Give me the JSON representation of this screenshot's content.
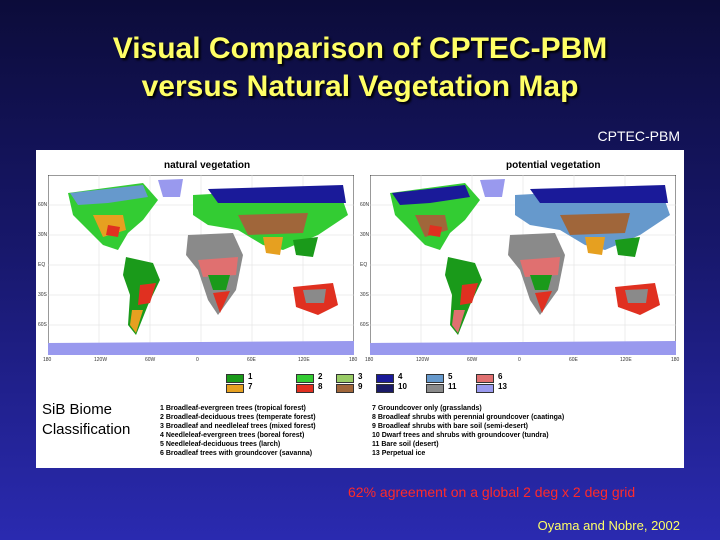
{
  "title": {
    "line1": "Visual Comparison of CPTEC-PBM",
    "line2": "versus Natural Vegetation Map"
  },
  "cptec_label": "CPTEC-PBM",
  "maps": {
    "left_title": "natural vegetation",
    "right_title": "potential vegetation",
    "lat_ticks": [
      "60N",
      "30N",
      "EQ",
      "30S",
      "60S"
    ],
    "lon_ticks": [
      "180",
      "120W",
      "60W",
      "0",
      "60E",
      "120E",
      "180"
    ]
  },
  "legend": {
    "items": [
      {
        "num": "1",
        "color": "#1a9a1a"
      },
      {
        "num": "2",
        "color": "#33cc33"
      },
      {
        "num": "3",
        "color": "#99cc66"
      },
      {
        "num": "4",
        "color": "#1a1a99"
      },
      {
        "num": "5",
        "color": "#6699cc"
      },
      {
        "num": "6",
        "color": "#e07070"
      },
      {
        "num": "7",
        "color": "#e6a020"
      },
      {
        "num": "8",
        "color": "#e03020"
      },
      {
        "num": "9",
        "color": "#a0663a"
      },
      {
        "num": "10",
        "color": "#1a1a66"
      },
      {
        "num": "11",
        "color": "#8a8a8a"
      },
      {
        "num": "13",
        "color": "#9999ee"
      }
    ]
  },
  "classes_left": [
    "1 Broadleaf-evergreen trees (tropical forest)",
    "2 Broadleaf-deciduous trees (temperate forest)",
    "3 Broadleaf and needleleaf trees (mixed forest)",
    "4 Needleleaf-evergreen trees (boreal forest)",
    "5 Needleleaf-deciduous trees (larch)",
    "6 Broadleaf trees with groundcover (savanna)"
  ],
  "classes_right": [
    "7 Groundcover only (grasslands)",
    "8 Broadleaf shrubs with perennial groundcover (caatinga)",
    "9 Broadleaf shrubs with bare soil (semi-desert)",
    "10 Dwarf trees and shrubs with groundcover (tundra)",
    "11 Bare soil (desert)",
    "13 Perpetual ice"
  ],
  "sib_label": {
    "line1": "SiB Biome",
    "line2": "Classification"
  },
  "agreement": "62% agreement on a global 2 deg x 2 deg grid",
  "credit": "Oyama and Nobre, 2002"
}
